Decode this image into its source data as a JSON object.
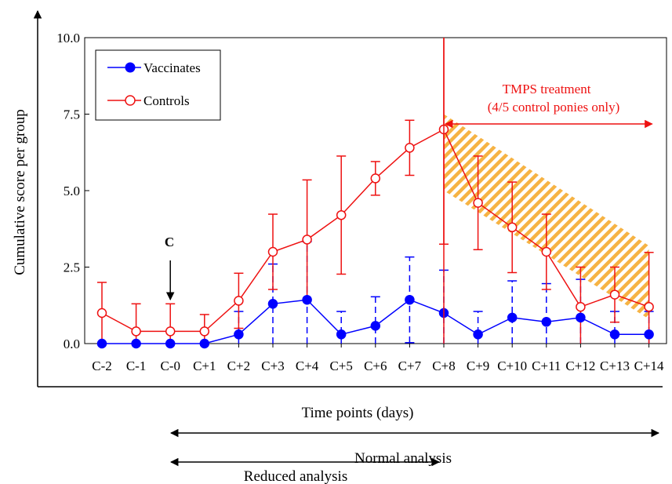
{
  "chart_data": {
    "type": "line",
    "categories": [
      "C-2",
      "C-1",
      "C-0",
      "C+1",
      "C+2",
      "C+3",
      "C+4",
      "C+5",
      "C+6",
      "C+7",
      "C+8",
      "C+9",
      "C+10",
      "C+11",
      "C+12",
      "C+13",
      "C+14"
    ],
    "xlabel": "Time points (days)",
    "ylabel": "Cumulative score per group",
    "ylim": [
      0,
      10
    ],
    "yticks": [
      "0.0",
      "2.5",
      "5.0",
      "7.5",
      "10.0"
    ],
    "grid": false,
    "legend_position": "top-left",
    "series": [
      {
        "name": "Vaccinates",
        "color": "#0000ff",
        "marker": "filled-circle",
        "line": "solid",
        "errorbar_style": "dashed",
        "values": [
          0,
          0,
          0,
          0,
          0.3,
          1.3,
          1.43,
          0.3,
          0.58,
          1.43,
          1.0,
          0.3,
          0.85,
          0.71,
          0.85,
          0.3,
          0.3
        ],
        "error": [
          0,
          0,
          0,
          0,
          0.75,
          1.3,
          1.9,
          0.75,
          0.95,
          1.4,
          1.4,
          0.75,
          1.2,
          1.25,
          1.25,
          0.75,
          0.75
        ]
      },
      {
        "name": "Controls",
        "color": "#ee1111",
        "marker": "open-circle",
        "line": "solid",
        "errorbar_style": "solid",
        "values": [
          1.0,
          0.4,
          0.4,
          0.4,
          1.4,
          3.0,
          3.4,
          4.2,
          5.4,
          6.4,
          7.0,
          4.6,
          3.8,
          3.0,
          1.2,
          1.6,
          1.2
        ],
        "error": [
          1.0,
          0.9,
          0.9,
          0.55,
          0.9,
          1.23,
          1.95,
          1.93,
          0.55,
          0.9,
          3.75,
          1.53,
          1.48,
          1.23,
          1.3,
          0.9,
          1.78
        ]
      }
    ],
    "annotations": {
      "challenge_label": "C",
      "treatment_label_line1": "TMPS treatment",
      "treatment_label_line2": "(4/5 control ponies only)",
      "treatment_color": "#ee1111",
      "hatch_color": "#f5a623",
      "normal_analysis": "Normal analysis",
      "reduced_analysis": "Reduced analysis"
    }
  }
}
